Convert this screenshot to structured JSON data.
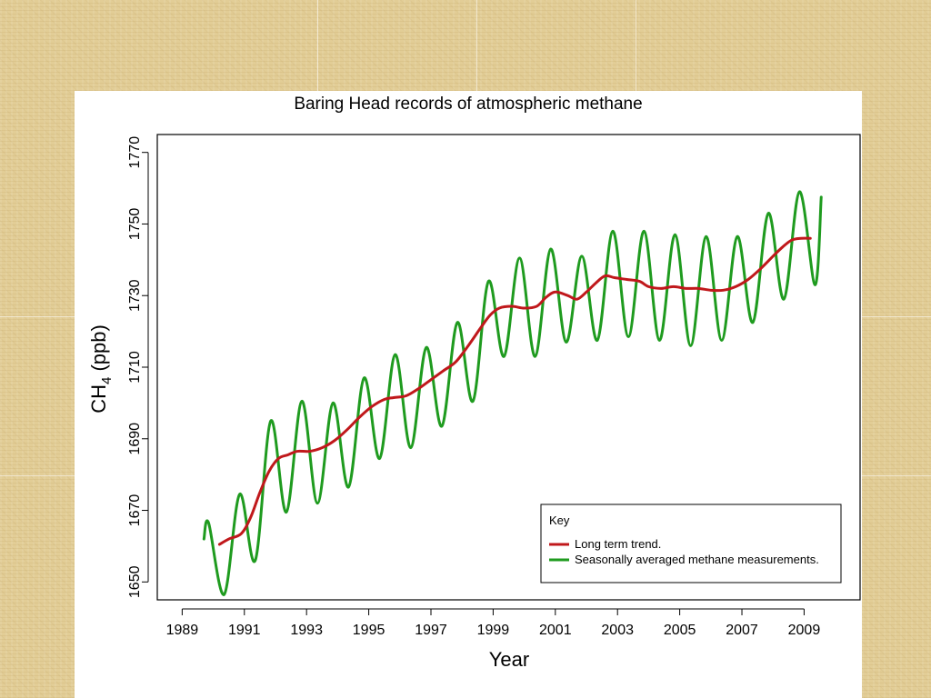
{
  "chart_data": {
    "type": "line",
    "title": "Baring Head records of atmospheric methane",
    "xlabel": "Year",
    "ylabel_main": "CH",
    "ylabel_sub": "4",
    "ylabel_unit": " (ppb)",
    "xlim": [
      1988.2,
      2010.8
    ],
    "ylim": [
      1645,
      1775
    ],
    "x_ticks": [
      1989,
      1991,
      1993,
      1995,
      1997,
      1999,
      2001,
      2003,
      2005,
      2007,
      2009
    ],
    "x_tick_labels": [
      "1989",
      "1991",
      "1993",
      "1995",
      "1997",
      "1999",
      "2001",
      "2003",
      "2005",
      "2007",
      "2009"
    ],
    "y_ticks": [
      1650,
      1670,
      1690,
      1710,
      1730,
      1750,
      1770
    ],
    "y_tick_labels": [
      "1650",
      "1670",
      "1690",
      "1710",
      "1730",
      "1750",
      "1770"
    ],
    "legend": {
      "title": "Key",
      "position": "bottom-right",
      "entries": [
        {
          "label": "Long term trend.",
          "color": "#c0181b"
        },
        {
          "label": "Seasonally averaged methane measurements.",
          "color": "#1f9b1f"
        }
      ]
    },
    "series": [
      {
        "name": "Long term trend.",
        "color": "#c0181b",
        "x": [
          1990.2,
          1990.5,
          1990.9,
          1991.2,
          1991.5,
          1991.8,
          1992.1,
          1992.4,
          1992.7,
          1993.1,
          1993.5,
          1993.9,
          1994.3,
          1994.7,
          1995.1,
          1995.5,
          1995.8,
          1996.2,
          1996.6,
          1997.0,
          1997.4,
          1997.8,
          1998.2,
          1998.6,
          1998.9,
          1999.2,
          1999.6,
          2000.0,
          2000.4,
          2000.7,
          2001.0,
          2001.4,
          2001.7,
          2002.0,
          2002.3,
          2002.6,
          2002.9,
          2003.3,
          2003.7,
          2004.0,
          2004.4,
          2004.8,
          2005.2,
          2005.6,
          2006.0,
          2006.4,
          2006.8,
          2007.2,
          2007.6,
          2008.0,
          2008.3,
          2008.6,
          2008.9,
          2009.2
        ],
        "y": [
          1660.5,
          1662,
          1663.5,
          1668,
          1675,
          1681,
          1684.5,
          1685.5,
          1686.5,
          1686.5,
          1687.5,
          1689.5,
          1692.5,
          1696,
          1699,
          1701,
          1701.5,
          1702,
          1704,
          1706.5,
          1709,
          1711.5,
          1716,
          1721,
          1724.5,
          1726.5,
          1727,
          1726.5,
          1727,
          1729.5,
          1731,
          1730,
          1729,
          1731,
          1733.5,
          1735.5,
          1735,
          1734.5,
          1734,
          1732.5,
          1732,
          1732.5,
          1732,
          1732,
          1731.5,
          1731.5,
          1732.5,
          1734.5,
          1737.5,
          1741,
          1743.5,
          1745.5,
          1746,
          1746
        ]
      },
      {
        "name": "Seasonally averaged methane measurements.",
        "color": "#1f9b1f",
        "x": [
          1989.7,
          1989.85,
          1990.35,
          1990.85,
          1991.35,
          1991.85,
          1992.35,
          1992.85,
          1993.35,
          1993.85,
          1994.35,
          1994.85,
          1995.35,
          1995.85,
          1996.35,
          1996.85,
          1997.35,
          1997.85,
          1998.35,
          1998.85,
          1999.35,
          1999.85,
          2000.35,
          2000.85,
          2001.35,
          2001.85,
          2002.35,
          2002.85,
          2003.35,
          2003.85,
          2004.35,
          2004.85,
          2005.35,
          2005.85,
          2006.35,
          2006.85,
          2007.35,
          2007.85,
          2008.35,
          2008.85,
          2009.35,
          2009.55
        ],
        "y": [
          1662,
          1666.5,
          1646.5,
          1674.5,
          1656,
          1695,
          1669.5,
          1700.5,
          1672,
          1700,
          1676.5,
          1707,
          1684.5,
          1713.5,
          1687.5,
          1715.5,
          1693.5,
          1722.5,
          1700.5,
          1734,
          1713,
          1740.5,
          1713,
          1743,
          1717,
          1741,
          1717.5,
          1748,
          1718.5,
          1748,
          1717.5,
          1747,
          1716,
          1746.5,
          1717.5,
          1746.5,
          1722.5,
          1753,
          1729,
          1759,
          1733,
          1757.5
        ]
      }
    ]
  }
}
